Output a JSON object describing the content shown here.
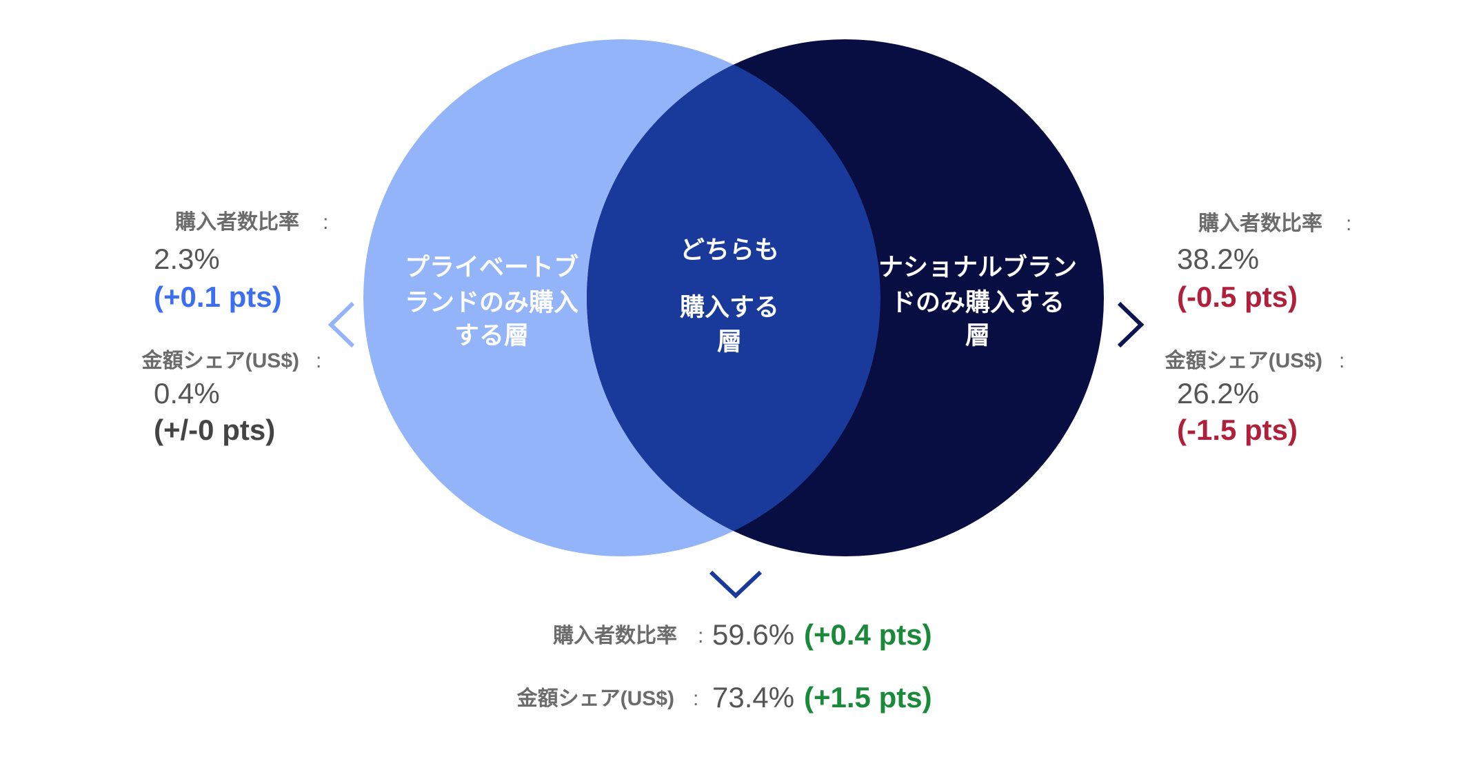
{
  "left": {
    "title": [
      "プライベートブ",
      "ランドのみ購入",
      "する層"
    ],
    "buyer_ratio": {
      "label": "購入者数比率",
      "separator": ":",
      "value": "2.3%",
      "change": "(+0.1 pts)"
    },
    "value_share": {
      "label": "金額シェア(US$)",
      "separator": ":",
      "value": "0.4%",
      "change": "(+/-0 pts)"
    }
  },
  "both": {
    "title": [
      "どちらも",
      "購入する",
      "層"
    ],
    "buyer_ratio": {
      "label": "購入者数比率",
      "separator": ":",
      "value": "59.6%",
      "change": "(+0.4 pts)"
    },
    "value_share": {
      "label": "金額シェア(US$)",
      "separator": ":",
      "value": "73.4%",
      "change": "(+1.5 pts)"
    }
  },
  "right": {
    "title": [
      "ナショナルブラン",
      "ドのみ購入する",
      "層"
    ],
    "buyer_ratio": {
      "label": "購入者数比率",
      "separator": ":",
      "value": "38.2%",
      "change": "(-0.5 pts)"
    },
    "value_share": {
      "label": "金額シェア(US$)",
      "separator": ":",
      "value": "26.2%",
      "change": "(-1.5 pts)"
    }
  }
}
